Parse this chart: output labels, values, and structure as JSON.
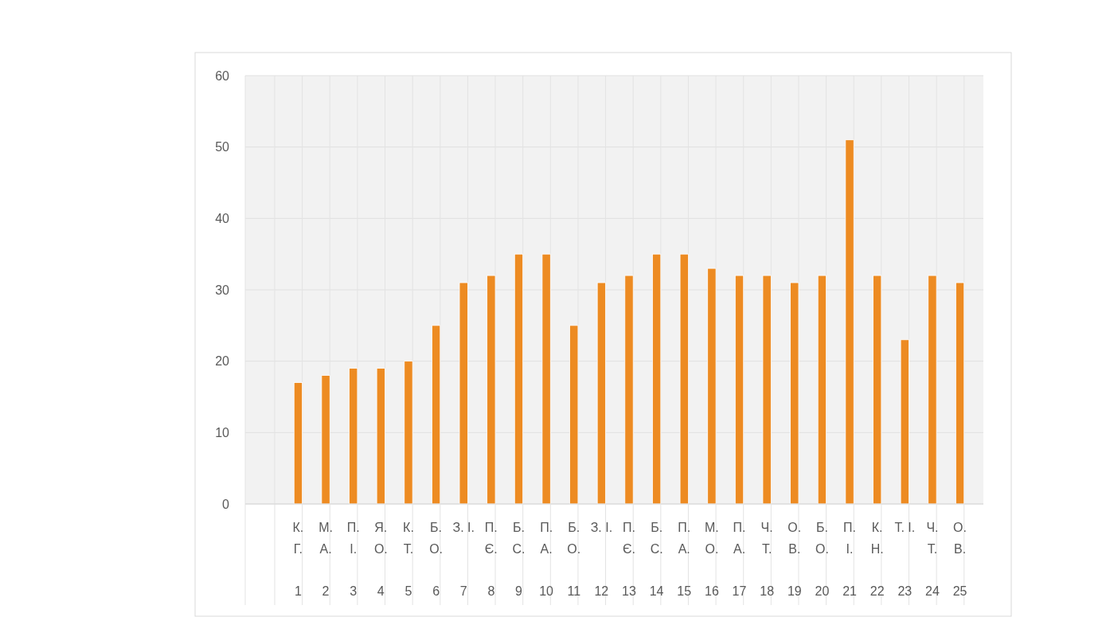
{
  "chart_data": {
    "type": "bar",
    "categories": [
      "К.\nГ.\n1",
      "М.\nА.\n2",
      "П.\nІ.\n3",
      "Я.\nО.\n4",
      "К.\nТ.\n5",
      "Б.\nО.\n6",
      "З. І.\n\n7",
      "П.\nЄ.\n8",
      "Б.\nС.\n9",
      "П.\nА.\n10",
      "Б.\nО.\n11",
      "З. І.\n\n12",
      "П.\nЄ.\n13",
      "Б.\nС.\n14",
      "П.\nА.\n15",
      "М.\nО.\n16",
      "П.\nА.\n17",
      "Ч.\nТ.\n18",
      "О.\nВ.\n19",
      "Б.\nО.\n20",
      "П.\nІ.\n21",
      "К.\nН.\n22",
      "Т. І.\n\n23",
      "Ч.\nТ.\n24",
      "О.\nВ.\n25"
    ],
    "values": [
      17,
      18,
      19,
      19,
      20,
      25,
      31,
      32,
      35,
      35,
      25,
      31,
      32,
      35,
      35,
      33,
      32,
      32,
      31,
      32,
      51,
      32,
      23,
      32,
      31
    ],
    "color": "#ed8b22",
    "ylim": [
      0,
      60
    ],
    "yticks": [
      0,
      10,
      20,
      30,
      40,
      50,
      60
    ],
    "grid": true
  }
}
